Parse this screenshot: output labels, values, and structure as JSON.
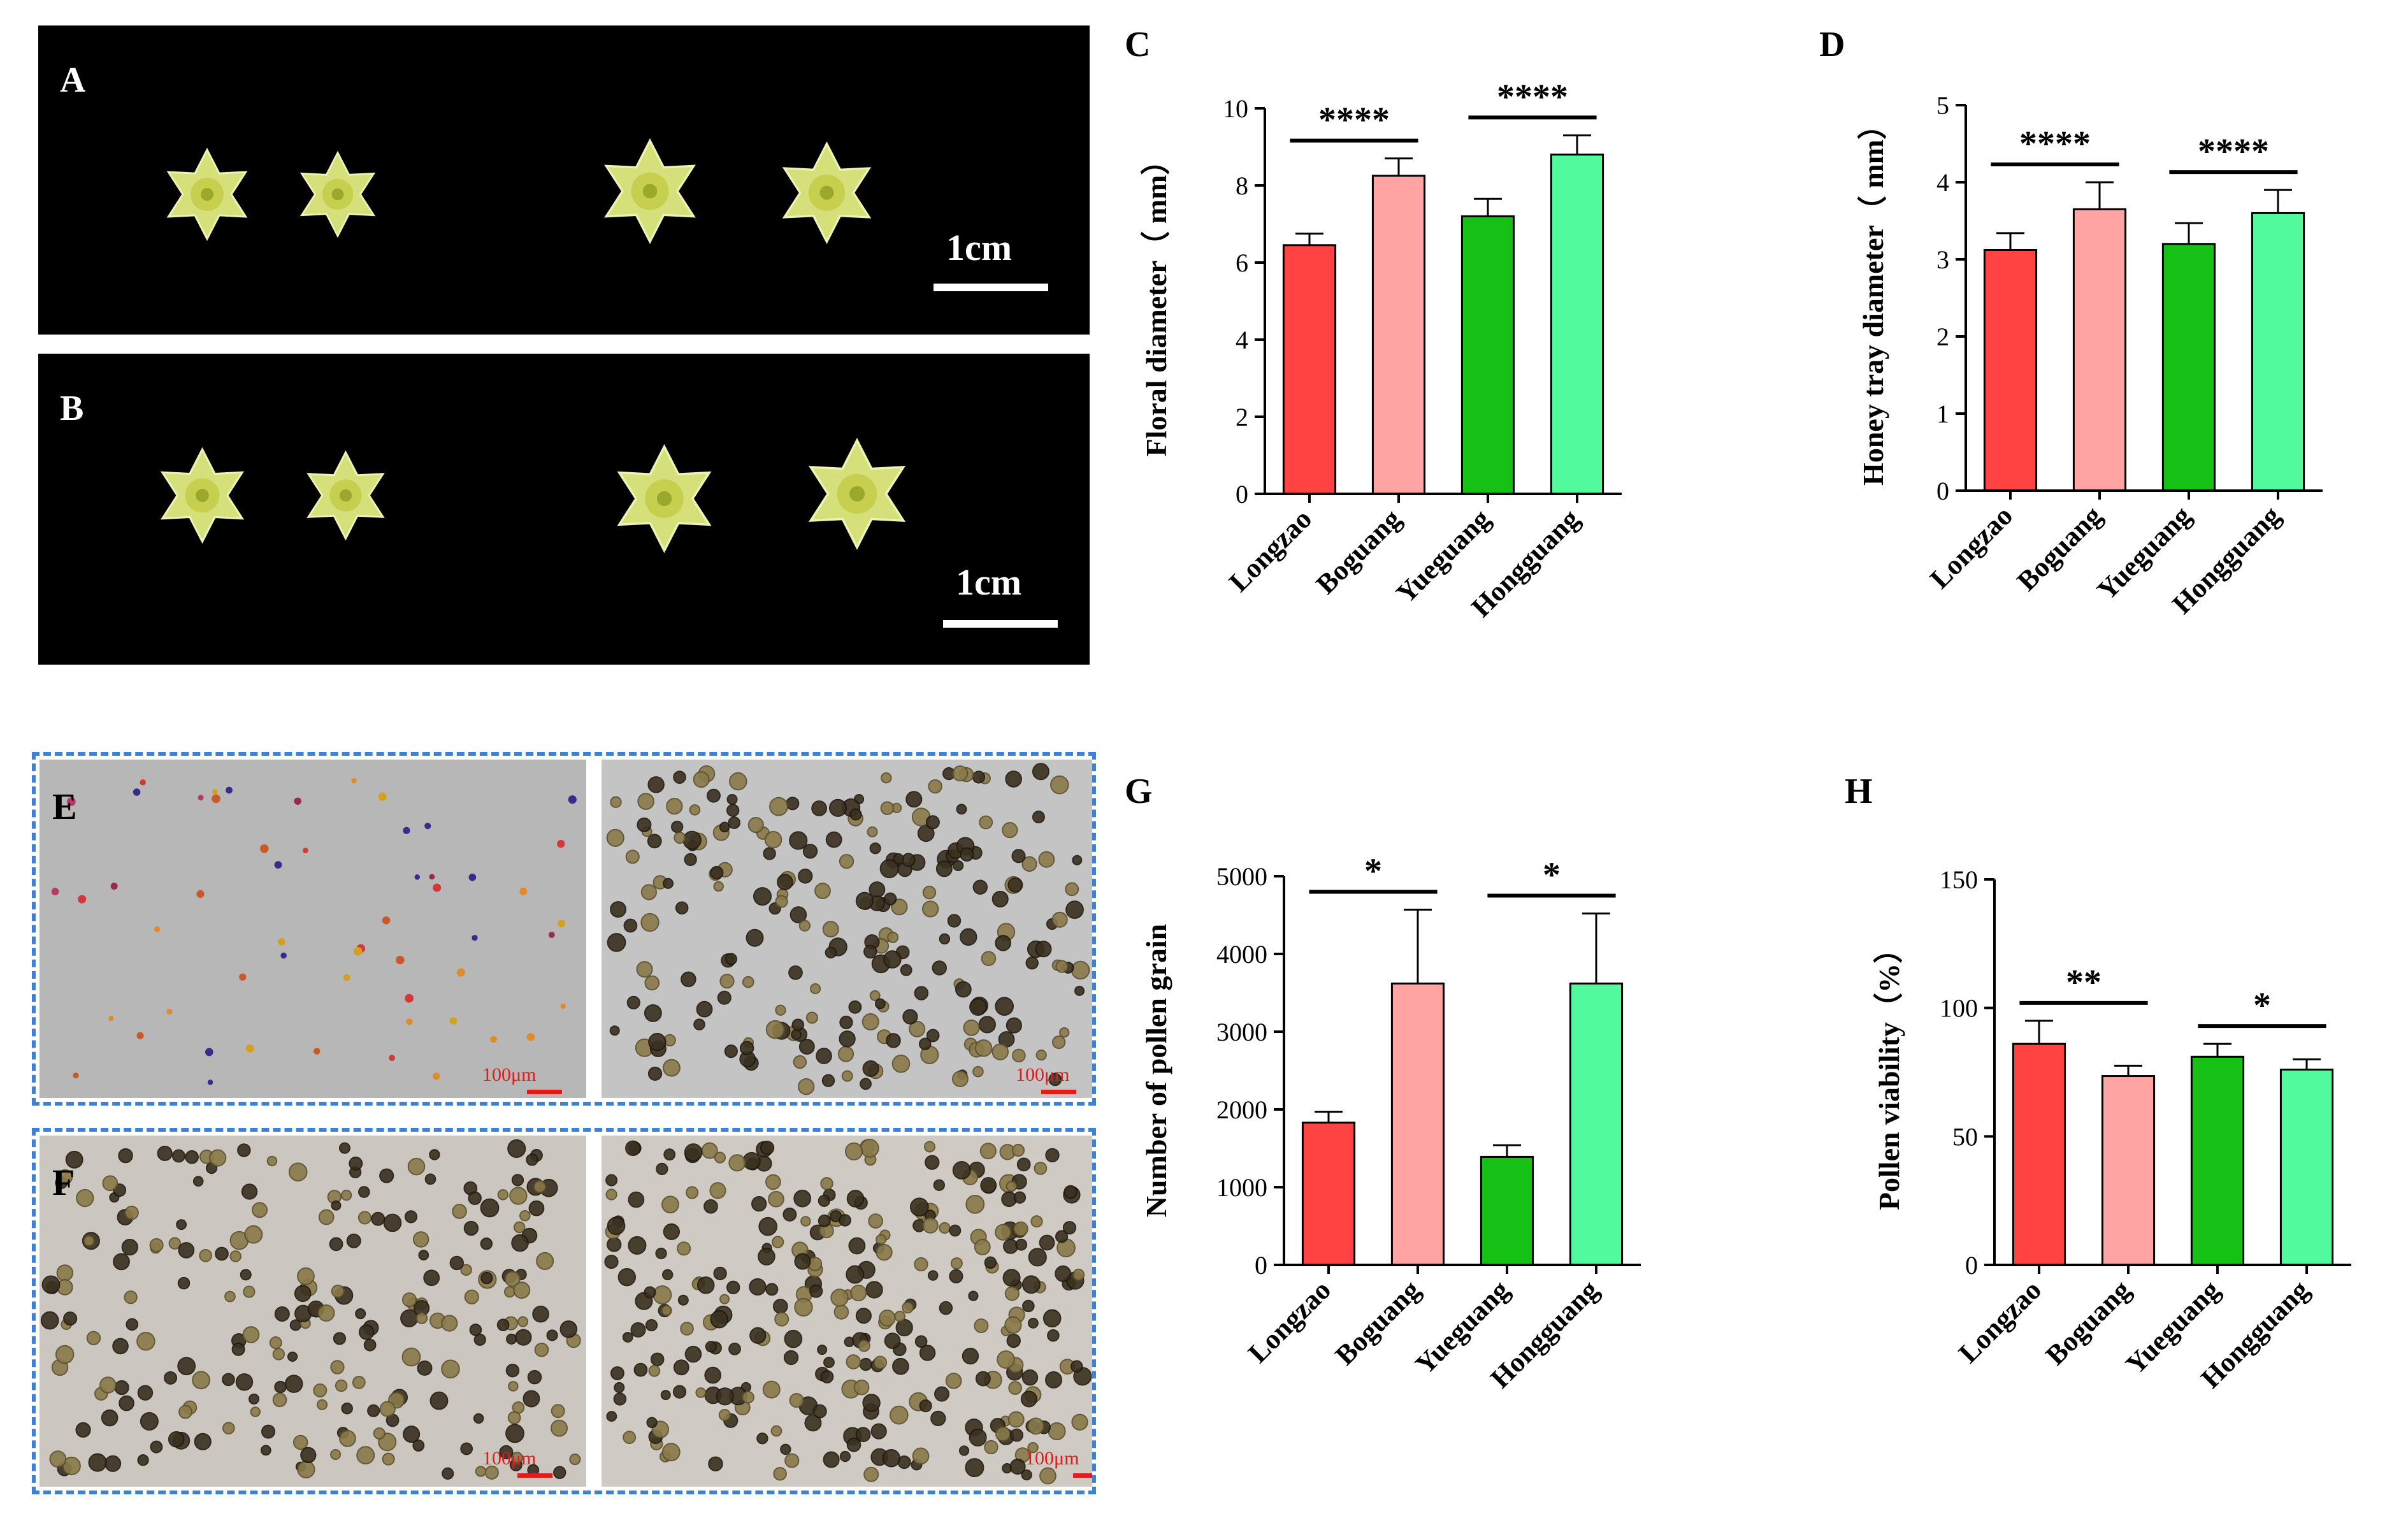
{
  "photos": {
    "A": {
      "label": "A",
      "scale": "1cm"
    },
    "B": {
      "label": "B",
      "scale": "1cm"
    }
  },
  "micrographs": {
    "E": {
      "label": "E",
      "scale_left": "100μm",
      "scale_right": "100μm"
    },
    "F": {
      "label": "F",
      "scale_left": "100μm",
      "scale_right": "100μm"
    }
  },
  "colors": {
    "Longzao": "#ff4242",
    "Boguang": "#ffa3a3",
    "Yueguang": "#15c115",
    "Hongguang": "#52fa9e"
  },
  "chart_data": [
    {
      "panel": "C",
      "type": "bar",
      "categories": [
        "Longzao",
        "Boguang",
        "Yueguang",
        "Hongguang"
      ],
      "values": [
        6.45,
        8.25,
        7.2,
        8.8
      ],
      "errors": [
        0.3,
        0.45,
        0.45,
        0.5
      ],
      "ylabel": "Floral diameter（ mm）",
      "ylim": [
        0,
        10
      ],
      "yticks": [
        0,
        2,
        4,
        6,
        8,
        10
      ],
      "significance": [
        {
          "from": 0,
          "to": 1,
          "label": "****"
        },
        {
          "from": 2,
          "to": 3,
          "label": "****"
        }
      ]
    },
    {
      "panel": "D",
      "type": "bar",
      "categories": [
        "Longzao",
        "Boguang",
        "Yueguang",
        "Hongguang"
      ],
      "values": [
        3.12,
        3.65,
        3.2,
        3.6
      ],
      "errors": [
        0.22,
        0.35,
        0.27,
        0.3
      ],
      "ylabel": "Honey tray diameter（ mm）",
      "ylim": [
        0,
        5
      ],
      "yticks": [
        0,
        1,
        2,
        3,
        4,
        5
      ],
      "significance": [
        {
          "from": 0,
          "to": 1,
          "label": "****"
        },
        {
          "from": 2,
          "to": 3,
          "label": "****"
        }
      ]
    },
    {
      "panel": "G",
      "type": "bar",
      "categories": [
        "Longzao",
        "Boguang",
        "Yueguang",
        "Hongguang"
      ],
      "values": [
        1830,
        3620,
        1390,
        3620
      ],
      "errors": [
        140,
        950,
        150,
        900
      ],
      "ylabel": "Number of pollen grain",
      "ylim": [
        0,
        5000
      ],
      "yticks": [
        0,
        1000,
        2000,
        3000,
        4000,
        5000
      ],
      "significance": [
        {
          "from": 0,
          "to": 1,
          "label": "*"
        },
        {
          "from": 2,
          "to": 3,
          "label": "*"
        }
      ]
    },
    {
      "panel": "H",
      "type": "bar",
      "categories": [
        "Longzao",
        "Boguang",
        "Yueguang",
        "Hongguang"
      ],
      "values": [
        86,
        73.5,
        81,
        76
      ],
      "errors": [
        9,
        4,
        5,
        4
      ],
      "ylabel": "Pollen viability（%）",
      "ylim": [
        0,
        150
      ],
      "yticks": [
        0,
        50,
        100,
        150
      ],
      "significance": [
        {
          "from": 0,
          "to": 1,
          "label": "**"
        },
        {
          "from": 2,
          "to": 3,
          "label": "*"
        }
      ]
    }
  ]
}
